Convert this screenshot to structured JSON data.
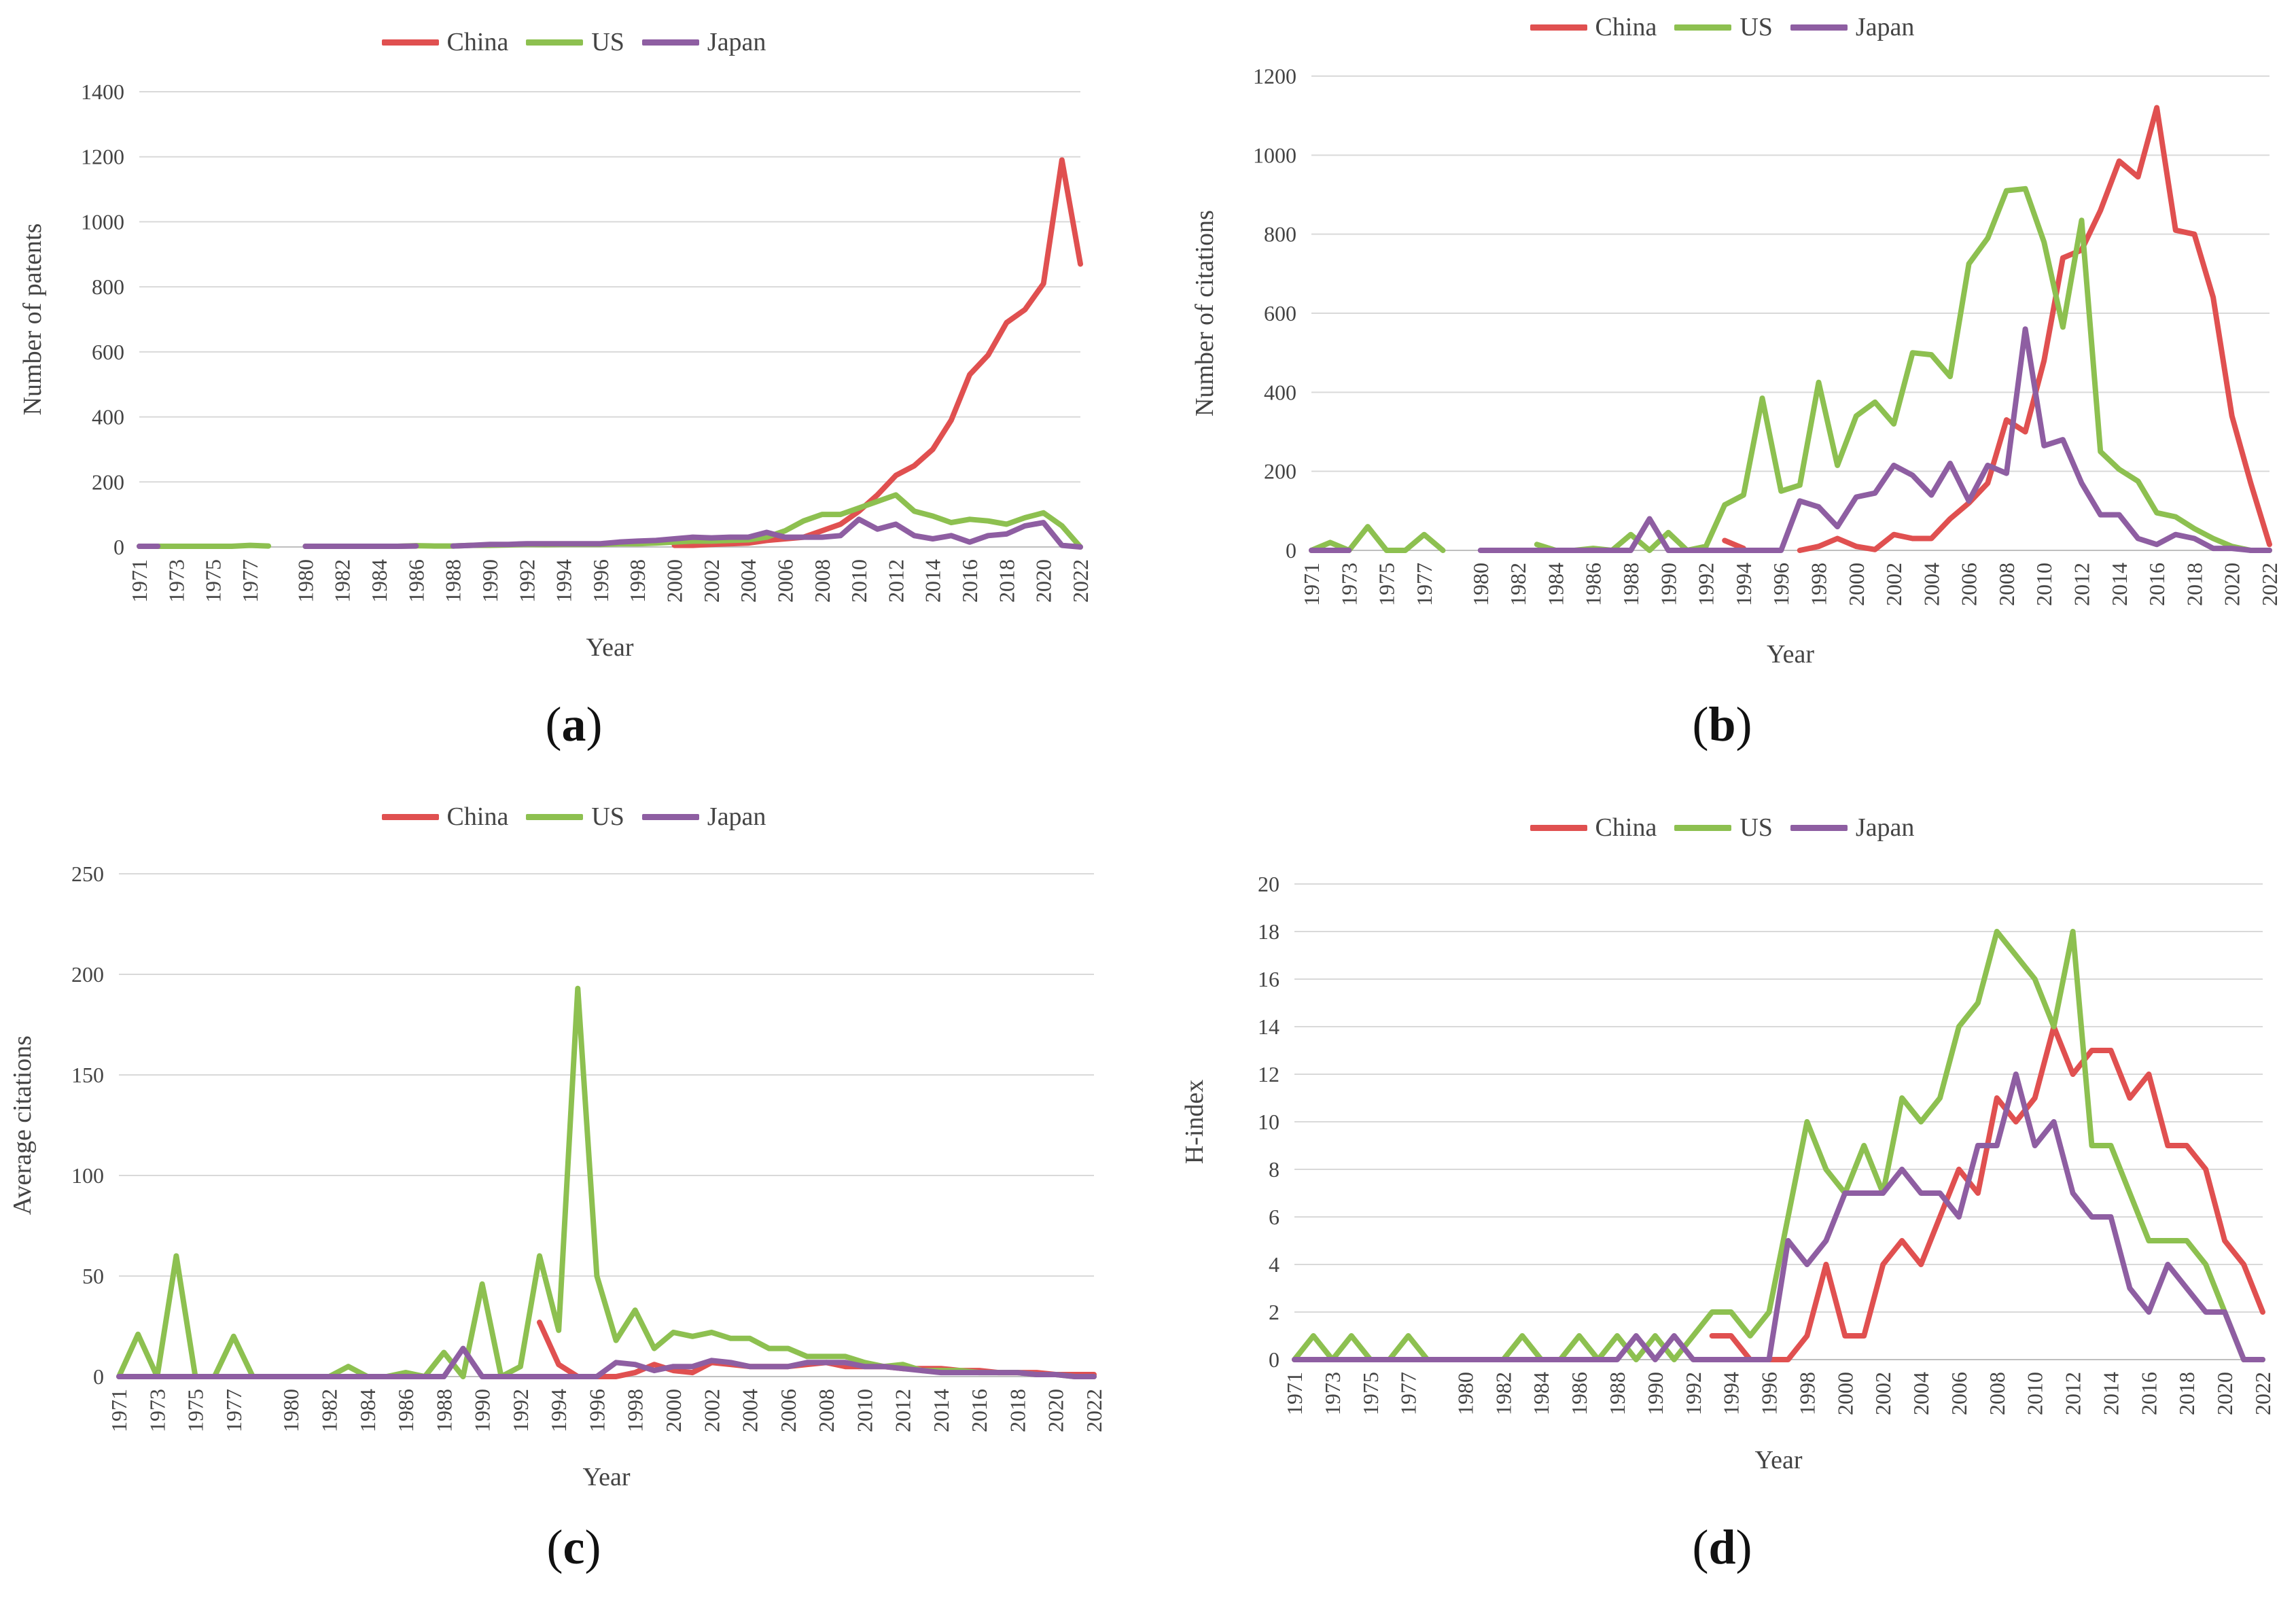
{
  "colors": {
    "China": "#e05050",
    "US": "#8dc050",
    "Japan": "#8e5ea2",
    "grid": "#d9d9d9",
    "axis": "#bfbfbf"
  },
  "panels": [
    {
      "label": "a"
    },
    {
      "label": "b"
    },
    {
      "label": "c"
    },
    {
      "label": "d"
    }
  ],
  "chart_data": [
    {
      "type": "line",
      "title": "",
      "xlabel": "Year",
      "ylabel": "Number of patents",
      "ylim": [
        0,
        1400
      ],
      "yticks": [
        0,
        200,
        400,
        600,
        800,
        1000,
        1200,
        1400
      ],
      "x": [
        1971,
        1972,
        1973,
        1974,
        1975,
        1976,
        1977,
        1978,
        1979,
        1980,
        1981,
        1982,
        1983,
        1984,
        1985,
        1986,
        1987,
        1988,
        1989,
        1990,
        1991,
        1992,
        1993,
        1994,
        1995,
        1996,
        1997,
        1998,
        1999,
        2000,
        2001,
        2002,
        2003,
        2004,
        2005,
        2006,
        2007,
        2008,
        2009,
        2010,
        2011,
        2012,
        2013,
        2014,
        2015,
        2016,
        2017,
        2018,
        2019,
        2020,
        2021,
        2022
      ],
      "xtick_labels": [
        "1971",
        "1973",
        "1975",
        "1977",
        "1980",
        "1982",
        "1984",
        "1986",
        "1988",
        "1990",
        "1992",
        "1994",
        "1996",
        "1998",
        "2000",
        "2002",
        "2004",
        "2006",
        "2008",
        "2010",
        "2012",
        "2014",
        "2016",
        "2018",
        "2020",
        "2022"
      ],
      "series": [
        {
          "name": "China",
          "values": [
            null,
            null,
            null,
            null,
            null,
            null,
            null,
            null,
            null,
            null,
            null,
            null,
            null,
            null,
            null,
            null,
            null,
            null,
            null,
            null,
            null,
            null,
            null,
            null,
            null,
            null,
            null,
            null,
            null,
            5,
            5,
            8,
            10,
            12,
            20,
            25,
            30,
            50,
            70,
            110,
            160,
            220,
            250,
            300,
            390,
            530,
            590,
            690,
            730,
            810,
            1190,
            870
          ]
        },
        {
          "name": "US",
          "values": [
            2,
            2,
            2,
            2,
            2,
            2,
            5,
            3,
            null,
            2,
            2,
            2,
            2,
            2,
            2,
            4,
            3,
            3,
            5,
            5,
            6,
            8,
            7,
            8,
            8,
            8,
            10,
            10,
            12,
            15,
            18,
            18,
            20,
            22,
            30,
            50,
            80,
            100,
            100,
            120,
            140,
            160,
            110,
            95,
            75,
            85,
            80,
            70,
            90,
            105,
            65,
            0
          ]
        },
        {
          "name": "Japan",
          "values": [
            2,
            2,
            null,
            null,
            null,
            null,
            null,
            null,
            null,
            2,
            2,
            2,
            2,
            2,
            2,
            3,
            null,
            3,
            5,
            8,
            8,
            10,
            10,
            10,
            10,
            10,
            15,
            18,
            20,
            25,
            30,
            28,
            30,
            30,
            45,
            30,
            30,
            30,
            35,
            85,
            55,
            70,
            35,
            25,
            35,
            15,
            35,
            40,
            65,
            75,
            5,
            0
          ]
        }
      ]
    },
    {
      "type": "line",
      "title": "",
      "xlabel": "Year",
      "ylabel": "Number of citations",
      "ylim": [
        0,
        1200
      ],
      "yticks": [
        0,
        200,
        400,
        600,
        800,
        1000,
        1200
      ],
      "x": [
        1971,
        1972,
        1973,
        1974,
        1975,
        1976,
        1977,
        1978,
        1979,
        1980,
        1981,
        1982,
        1983,
        1984,
        1985,
        1986,
        1987,
        1988,
        1989,
        1990,
        1991,
        1992,
        1993,
        1994,
        1995,
        1996,
        1997,
        1998,
        1999,
        2000,
        2001,
        2002,
        2003,
        2004,
        2005,
        2006,
        2007,
        2008,
        2009,
        2010,
        2011,
        2012,
        2013,
        2014,
        2015,
        2016,
        2017,
        2018,
        2019,
        2020,
        2021,
        2022
      ],
      "xtick_labels": [
        "1971",
        "1973",
        "1975",
        "1977",
        "1980",
        "1982",
        "1984",
        "1986",
        "1988",
        "1990",
        "1992",
        "1994",
        "1996",
        "1998",
        "2000",
        "2002",
        "2004",
        "2006",
        "2008",
        "2010",
        "2012",
        "2014",
        "2016",
        "2018",
        "2020",
        "2022"
      ],
      "series": [
        {
          "name": "China",
          "values": [
            null,
            null,
            null,
            null,
            null,
            null,
            null,
            null,
            null,
            null,
            null,
            null,
            null,
            null,
            null,
            null,
            null,
            null,
            null,
            null,
            null,
            null,
            25,
            5,
            null,
            null,
            0,
            10,
            30,
            10,
            2,
            40,
            30,
            30,
            80,
            120,
            170,
            330,
            300,
            480,
            740,
            760,
            860,
            985,
            945,
            1120,
            810,
            800,
            640,
            340,
            170,
            15
          ]
        },
        {
          "name": "US",
          "values": [
            0,
            20,
            0,
            60,
            0,
            0,
            40,
            0,
            null,
            null,
            null,
            null,
            15,
            0,
            0,
            5,
            0,
            40,
            0,
            45,
            0,
            10,
            115,
            140,
            385,
            150,
            165,
            425,
            215,
            340,
            375,
            320,
            500,
            495,
            440,
            725,
            790,
            910,
            915,
            780,
            565,
            835,
            250,
            205,
            175,
            95,
            85,
            55,
            30,
            10,
            0,
            0
          ]
        },
        {
          "name": "Japan",
          "values": [
            0,
            0,
            0,
            null,
            null,
            null,
            null,
            null,
            null,
            0,
            0,
            0,
            0,
            0,
            0,
            0,
            0,
            0,
            80,
            0,
            0,
            0,
            0,
            0,
            0,
            0,
            125,
            110,
            60,
            135,
            145,
            215,
            190,
            140,
            220,
            125,
            215,
            195,
            560,
            265,
            280,
            170,
            90,
            90,
            30,
            15,
            40,
            30,
            5,
            5,
            0,
            0
          ]
        }
      ]
    },
    {
      "type": "line",
      "title": "",
      "xlabel": "Year",
      "ylabel": "Average citations",
      "ylim": [
        0,
        250
      ],
      "yticks": [
        0,
        50,
        100,
        150,
        200,
        250
      ],
      "x": [
        1971,
        1972,
        1973,
        1974,
        1975,
        1976,
        1977,
        1978,
        1979,
        1980,
        1981,
        1982,
        1983,
        1984,
        1985,
        1986,
        1987,
        1988,
        1989,
        1990,
        1991,
        1992,
        1993,
        1994,
        1995,
        1996,
        1997,
        1998,
        1999,
        2000,
        2001,
        2002,
        2003,
        2004,
        2005,
        2006,
        2007,
        2008,
        2009,
        2010,
        2011,
        2012,
        2013,
        2014,
        2015,
        2016,
        2017,
        2018,
        2019,
        2020,
        2021,
        2022
      ],
      "xtick_labels": [
        "1971",
        "1973",
        "1975",
        "1977",
        "1980",
        "1982",
        "1984",
        "1986",
        "1988",
        "1990",
        "1992",
        "1994",
        "1996",
        "1998",
        "2000",
        "2002",
        "2004",
        "2006",
        "2008",
        "2010",
        "2012",
        "2014",
        "2016",
        "2018",
        "2020",
        "2022"
      ],
      "series": [
        {
          "name": "China",
          "values": [
            null,
            null,
            null,
            null,
            null,
            null,
            null,
            null,
            null,
            null,
            null,
            null,
            null,
            null,
            null,
            null,
            null,
            null,
            null,
            null,
            null,
            null,
            27,
            6,
            0,
            0,
            0,
            2,
            6,
            3,
            2,
            7,
            6,
            5,
            5,
            5,
            6,
            7,
            5,
            5,
            5,
            4,
            4,
            4,
            3,
            3,
            2,
            2,
            2,
            1,
            1,
            1
          ]
        },
        {
          "name": "US",
          "values": [
            0,
            21,
            0,
            60,
            0,
            0,
            20,
            0,
            0,
            0,
            0,
            0,
            5,
            0,
            0,
            2,
            0,
            12,
            0,
            46,
            0,
            5,
            60,
            23,
            193,
            50,
            18,
            33,
            14,
            22,
            20,
            22,
            19,
            19,
            14,
            14,
            10,
            10,
            10,
            7,
            5,
            6,
            3,
            3,
            3,
            2,
            2,
            2,
            1,
            1,
            0,
            0
          ]
        },
        {
          "name": "Japan",
          "values": [
            0,
            0,
            0,
            0,
            0,
            0,
            0,
            0,
            0,
            0,
            0,
            0,
            0,
            0,
            0,
            0,
            0,
            0,
            14,
            0,
            0,
            0,
            0,
            0,
            0,
            0,
            7,
            6,
            3,
            5,
            5,
            8,
            7,
            5,
            5,
            5,
            7,
            7,
            7,
            5,
            5,
            4,
            3,
            2,
            2,
            2,
            2,
            2,
            1,
            1,
            0,
            0
          ]
        }
      ]
    },
    {
      "type": "line",
      "title": "",
      "xlabel": "Year",
      "ylabel": "H-index",
      "ylim": [
        0,
        20
      ],
      "yticks": [
        0,
        2,
        4,
        6,
        8,
        10,
        12,
        14,
        16,
        18,
        20
      ],
      "x": [
        1971,
        1972,
        1973,
        1974,
        1975,
        1976,
        1977,
        1978,
        1979,
        1980,
        1981,
        1982,
        1983,
        1984,
        1985,
        1986,
        1987,
        1988,
        1989,
        1990,
        1991,
        1992,
        1993,
        1994,
        1995,
        1996,
        1997,
        1998,
        1999,
        2000,
        2001,
        2002,
        2003,
        2004,
        2005,
        2006,
        2007,
        2008,
        2009,
        2010,
        2011,
        2012,
        2013,
        2014,
        2015,
        2016,
        2017,
        2018,
        2019,
        2020,
        2021,
        2022
      ],
      "xtick_labels": [
        "1971",
        "1973",
        "1975",
        "1977",
        "1980",
        "1982",
        "1984",
        "1986",
        "1988",
        "1990",
        "1992",
        "1994",
        "1996",
        "1998",
        "2000",
        "2002",
        "2004",
        "2006",
        "2008",
        "2010",
        "2012",
        "2014",
        "2016",
        "2018",
        "2020",
        "2022"
      ],
      "series": [
        {
          "name": "China",
          "values": [
            null,
            null,
            null,
            null,
            null,
            null,
            null,
            null,
            null,
            null,
            null,
            null,
            null,
            null,
            null,
            null,
            null,
            null,
            null,
            null,
            null,
            null,
            1,
            1,
            0,
            0,
            0,
            1,
            4,
            1,
            1,
            4,
            5,
            4,
            6,
            8,
            7,
            11,
            10,
            11,
            14,
            12,
            13,
            13,
            11,
            12,
            9,
            9,
            8,
            5,
            4,
            2
          ]
        },
        {
          "name": "US",
          "values": [
            0,
            1,
            0,
            1,
            0,
            0,
            1,
            0,
            0,
            0,
            0,
            0,
            1,
            0,
            0,
            1,
            0,
            1,
            0,
            1,
            0,
            1,
            2,
            2,
            1,
            2,
            6,
            10,
            8,
            7,
            9,
            7,
            11,
            10,
            11,
            14,
            15,
            18,
            17,
            16,
            14,
            18,
            9,
            9,
            7,
            5,
            5,
            5,
            4,
            2,
            0,
            0
          ]
        },
        {
          "name": "Japan",
          "values": [
            0,
            0,
            0,
            0,
            0,
            0,
            0,
            0,
            0,
            0,
            0,
            0,
            0,
            0,
            0,
            0,
            0,
            0,
            1,
            0,
            1,
            0,
            0,
            0,
            0,
            0,
            5,
            4,
            5,
            7,
            7,
            7,
            8,
            7,
            7,
            6,
            9,
            9,
            12,
            9,
            10,
            7,
            6,
            6,
            3,
            2,
            4,
            3,
            2,
            2,
            0,
            0
          ]
        }
      ]
    }
  ]
}
